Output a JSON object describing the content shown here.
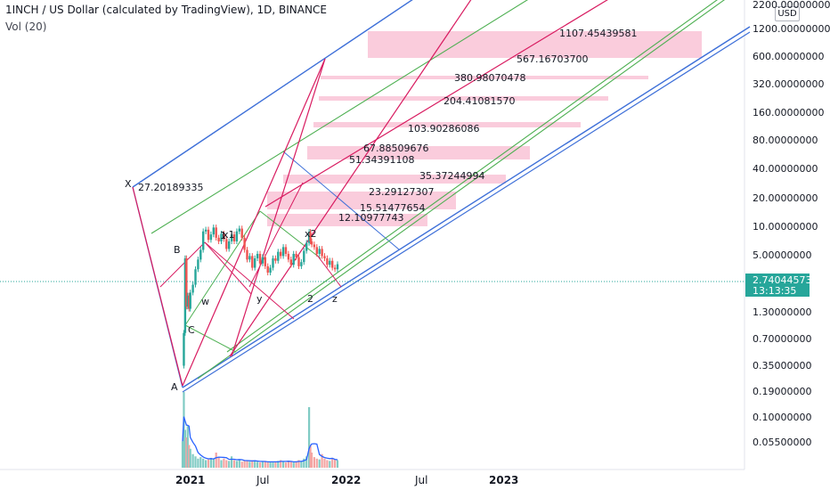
{
  "header": {
    "title": "1INCH / US Dollar (calculated by TradingView), 1D, BINANCE",
    "volume_label": "Vol (20)"
  },
  "price_axis": {
    "currency": "USD",
    "scale": "log",
    "ticks": [
      "2200.00000000",
      "1200.00000000",
      "600.00000000",
      "320.00000000",
      "160.00000000",
      "80.00000000",
      "40.00000000",
      "20.00000000",
      "10.00000000",
      "5.00000000",
      "2.74044573",
      "1.30000000",
      "0.70000000",
      "0.35000000",
      "0.19000000",
      "0.10000000",
      "0.05500000"
    ],
    "last_price": "2.74044573",
    "countdown": "13:13:35",
    "last_price_color": "#26a69a"
  },
  "time_axis": {
    "ticks": [
      {
        "label": "2021",
        "bold": true
      },
      {
        "label": "Jul",
        "bold": false
      },
      {
        "label": "2022",
        "bold": true
      },
      {
        "label": "Jul",
        "bold": false
      },
      {
        "label": "2023",
        "bold": true
      }
    ]
  },
  "chart_data": {
    "type": "candlestick",
    "symbol": "1INCH/USD",
    "interval": "1D",
    "exchange": "BINANCE",
    "y_scale": "log",
    "ylim": [
      0.045,
      2600
    ],
    "last_close": 2.74044573,
    "wave_labels": [
      "X",
      "B",
      "1",
      "x1",
      "w",
      "C",
      "A",
      "y",
      "x2",
      "2",
      "z"
    ],
    "fib_levels": [
      {
        "label": "1107.45439581",
        "value": 1107.45439581
      },
      {
        "label": "567.16703700",
        "value": 567.167037
      },
      {
        "label": "380.98070478",
        "value": 380.98070478
      },
      {
        "label": "204.41081570",
        "value": 204.4108157
      },
      {
        "label": "103.90286086",
        "value": 103.90286086
      },
      {
        "label": "67.88509676",
        "value": 67.88509676
      },
      {
        "label": "51.34391108",
        "value": 51.34391108
      },
      {
        "label": "35.37244994",
        "value": 35.37244994
      },
      {
        "label": "27.20189335",
        "value": 27.20189335
      },
      {
        "label": "23.29127307",
        "value": 23.29127307
      },
      {
        "label": "15.51477654",
        "value": 15.51477654
      },
      {
        "label": "12.10977743",
        "value": 12.10977743
      }
    ],
    "price_path": [
      [
        0,
        0.19
      ],
      [
        1,
        0.45
      ],
      [
        2,
        3.2
      ],
      [
        3,
        0.9
      ],
      [
        4,
        1.2
      ],
      [
        5,
        0.85
      ],
      [
        6,
        1.3
      ],
      [
        8,
        1.6
      ],
      [
        10,
        2.4
      ],
      [
        12,
        3.1
      ],
      [
        14,
        4.0
      ],
      [
        16,
        6.5
      ],
      [
        18,
        6.8
      ],
      [
        20,
        5.2
      ],
      [
        22,
        6.0
      ],
      [
        24,
        7.2
      ],
      [
        26,
        5.5
      ],
      [
        28,
        5.0
      ],
      [
        30,
        6.1
      ],
      [
        32,
        5.3
      ],
      [
        34,
        4.1
      ],
      [
        36,
        5.0
      ],
      [
        38,
        6.0
      ],
      [
        40,
        5.0
      ],
      [
        42,
        6.5
      ],
      [
        44,
        7.0
      ],
      [
        46,
        5.5
      ],
      [
        48,
        4.0
      ],
      [
        50,
        3.1
      ],
      [
        52,
        3.4
      ],
      [
        54,
        2.5
      ],
      [
        56,
        3.2
      ],
      [
        58,
        3.6
      ],
      [
        60,
        2.8
      ],
      [
        62,
        3.3
      ],
      [
        64,
        2.6
      ],
      [
        66,
        2.2
      ],
      [
        68,
        2.5
      ],
      [
        70,
        3.2
      ],
      [
        72,
        3.0
      ],
      [
        74,
        3.8
      ],
      [
        76,
        3.4
      ],
      [
        78,
        4.3
      ],
      [
        80,
        3.6
      ],
      [
        82,
        3.1
      ],
      [
        84,
        2.7
      ],
      [
        86,
        3.6
      ],
      [
        88,
        3.3
      ],
      [
        90,
        2.6
      ],
      [
        92,
        2.9
      ],
      [
        94,
        3.9
      ],
      [
        96,
        4.8
      ],
      [
        98,
        6.4
      ],
      [
        99,
        5.0
      ],
      [
        100,
        4.6
      ],
      [
        102,
        4.3
      ],
      [
        104,
        3.6
      ],
      [
        106,
        4.1
      ],
      [
        108,
        3.4
      ],
      [
        110,
        3.2
      ],
      [
        112,
        2.7
      ],
      [
        114,
        3.0
      ],
      [
        116,
        2.5
      ],
      [
        118,
        2.4
      ],
      [
        120,
        2.74
      ]
    ],
    "volume_path": [
      [
        0,
        0.35
      ],
      [
        1,
        1.0
      ],
      [
        2,
        0.5
      ],
      [
        3,
        0.4
      ],
      [
        4,
        0.55
      ],
      [
        5,
        0.3
      ],
      [
        6,
        0.25
      ],
      [
        8,
        0.18
      ],
      [
        10,
        0.15
      ],
      [
        12,
        0.12
      ],
      [
        14,
        0.14
      ],
      [
        16,
        0.12
      ],
      [
        18,
        0.1
      ],
      [
        20,
        0.11
      ],
      [
        22,
        0.13
      ],
      [
        24,
        0.12
      ],
      [
        26,
        0.2
      ],
      [
        28,
        0.14
      ],
      [
        30,
        0.1
      ],
      [
        32,
        0.12
      ],
      [
        34,
        0.1
      ],
      [
        36,
        0.09
      ],
      [
        38,
        0.15
      ],
      [
        40,
        0.1
      ],
      [
        42,
        0.09
      ],
      [
        44,
        0.11
      ],
      [
        46,
        0.08
      ],
      [
        48,
        0.1
      ],
      [
        50,
        0.09
      ],
      [
        52,
        0.08
      ],
      [
        54,
        0.1
      ],
      [
        56,
        0.09
      ],
      [
        58,
        0.08
      ],
      [
        60,
        0.07
      ],
      [
        62,
        0.08
      ],
      [
        64,
        0.09
      ],
      [
        66,
        0.07
      ],
      [
        68,
        0.08
      ],
      [
        70,
        0.07
      ],
      [
        72,
        0.08
      ],
      [
        74,
        0.09
      ],
      [
        76,
        0.1
      ],
      [
        78,
        0.08
      ],
      [
        80,
        0.07
      ],
      [
        82,
        0.09
      ],
      [
        84,
        0.08
      ],
      [
        86,
        0.07
      ],
      [
        88,
        0.08
      ],
      [
        90,
        0.1
      ],
      [
        92,
        0.09
      ],
      [
        94,
        0.12
      ],
      [
        96,
        0.15
      ],
      [
        98,
        0.8
      ],
      [
        99,
        0.3
      ],
      [
        100,
        0.2
      ],
      [
        102,
        0.14
      ],
      [
        104,
        0.12
      ],
      [
        106,
        0.11
      ],
      [
        108,
        0.18
      ],
      [
        110,
        0.12
      ],
      [
        112,
        0.1
      ],
      [
        114,
        0.09
      ],
      [
        116,
        0.13
      ],
      [
        118,
        0.11
      ],
      [
        120,
        0.1
      ]
    ]
  }
}
